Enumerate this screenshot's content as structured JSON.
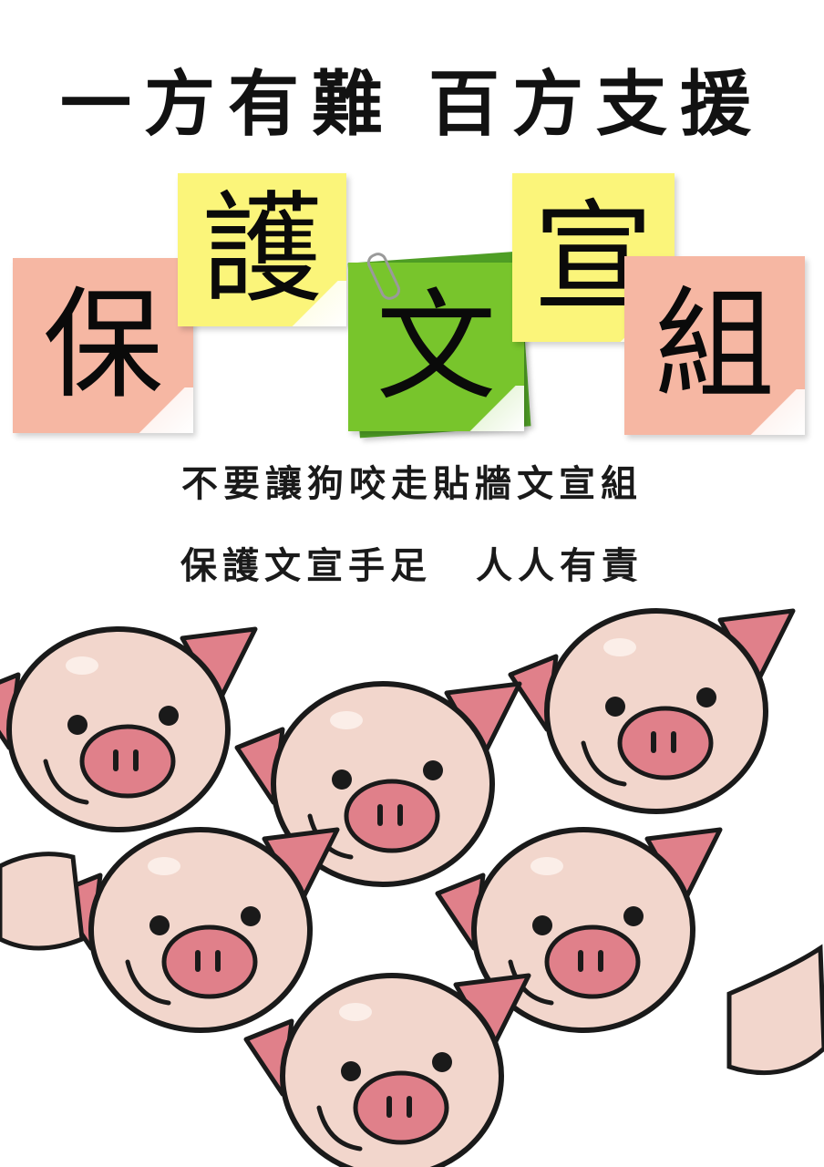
{
  "headline": {
    "left": "一方有難",
    "right": "百方支援"
  },
  "notes": [
    "保",
    "護",
    "文",
    "宣",
    "組"
  ],
  "slogan1": "不要讓狗咬走貼牆文宣組",
  "slogan2": {
    "left": "保護文宣手足",
    "right": "人人有責"
  },
  "colors": {
    "pig_skin": "#f2d6cc",
    "pig_nose": "#e0808a",
    "note_pink": "#f6b7a3",
    "note_yellow": "#fbf57a",
    "note_green": "#78c52c"
  },
  "illustration": "cartoon-pigs"
}
